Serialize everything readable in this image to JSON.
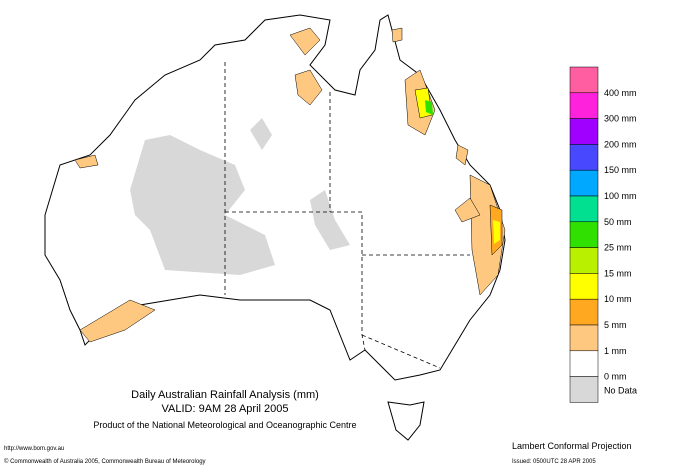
{
  "map": {
    "title": "Daily Australian Rainfall Analysis (mm)",
    "valid": "VALID: 9AM 28 April 2005",
    "product": "Product of the National Meteorological and Oceanographic Centre",
    "url": "http://www.bom.gov.au",
    "copyright": "© Commonwealth of Australia 2005, Commonwealth Bureau of Meteorology",
    "projection": "Lambert Conformal Projection",
    "issued": "Issued: 0500UTC 28 APR 2005"
  },
  "legend": {
    "entries": [
      {
        "color": "#ff5fa0"
      },
      {
        "label": "400 mm",
        "color": "#ff22dd"
      },
      {
        "label": "300 mm",
        "color": "#a000ff"
      },
      {
        "label": "200 mm",
        "color": "#4848ff"
      },
      {
        "label": "150 mm",
        "color": "#00a8ff"
      },
      {
        "label": "100 mm",
        "color": "#00e090"
      },
      {
        "label": "50 mm",
        "color": "#30e000"
      },
      {
        "label": "25 mm",
        "color": "#b8f000"
      },
      {
        "label": "15 mm",
        "color": "#ffff00"
      },
      {
        "label": "10 mm",
        "color": "#ffa820"
      },
      {
        "label": "5 mm",
        "color": "#ffc880"
      },
      {
        "label": "1 mm",
        "color": "#ffffff"
      },
      {
        "label": "0 mm",
        "color": "#d8d8d8"
      },
      {
        "label": "No Data"
      }
    ]
  }
}
